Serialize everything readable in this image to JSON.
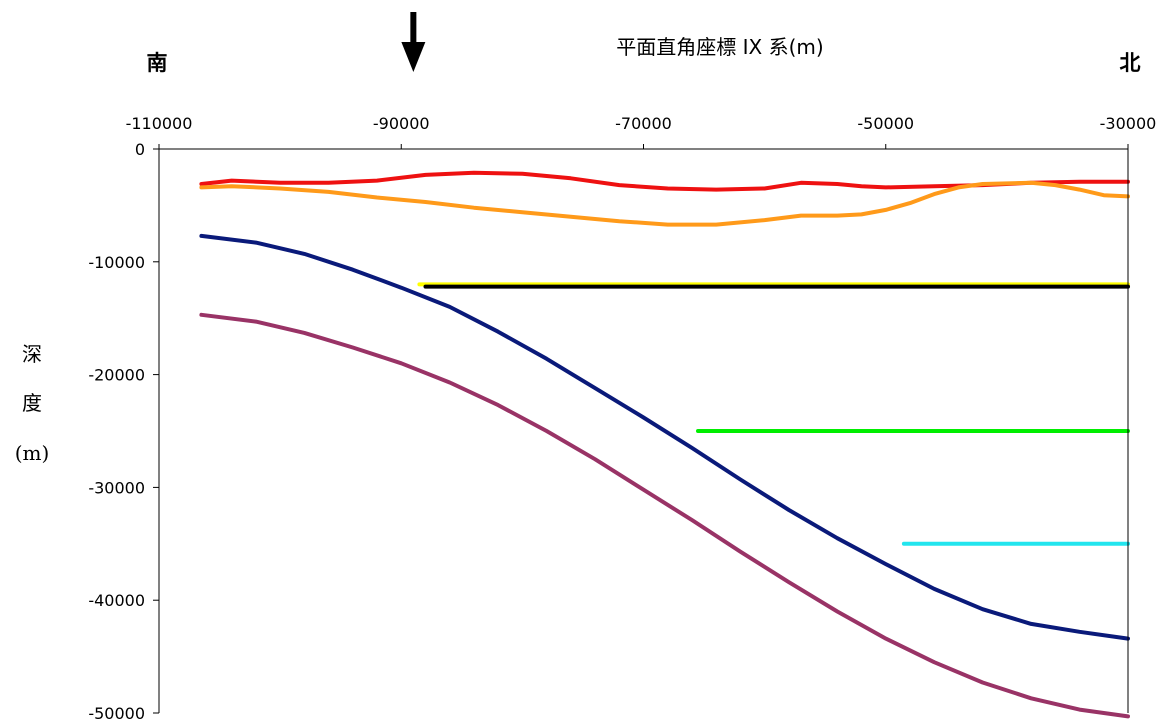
{
  "chart_data": {
    "type": "line",
    "title": "平面直角座標 IX 系(m)",
    "left_label": "南",
    "right_label": "北",
    "ylabel_lines": [
      "深",
      "度",
      "(m)"
    ],
    "marker_x": -89000,
    "xlim": [
      -110000,
      -30000
    ],
    "ylim": [
      -50000,
      0
    ],
    "xticks": [
      -110000,
      -90000,
      -70000,
      -50000,
      -30000
    ],
    "xtick_labels": [
      "-110000",
      "-90000",
      "-70000",
      "-50000",
      "-30000"
    ],
    "yticks": [
      0,
      -10000,
      -20000,
      -30000,
      -40000,
      -50000
    ],
    "ytick_labels": [
      "0",
      "-10000",
      "-20000",
      "-30000",
      "-40000",
      "-50000"
    ],
    "grid": false,
    "series": [
      {
        "color": "#ee1111",
        "x": [
          -106500,
          -104000,
          -100000,
          -96000,
          -92000,
          -88000,
          -84000,
          -80000,
          -76000,
          -72000,
          -68000,
          -64000,
          -60000,
          -57000,
          -54000,
          -52000,
          -50000,
          -46000,
          -42000,
          -38000,
          -34000,
          -30000
        ],
        "y": [
          -3100,
          -2800,
          -3000,
          -3000,
          -2800,
          -2300,
          -2100,
          -2200,
          -2600,
          -3200,
          -3500,
          -3600,
          -3500,
          -3000,
          -3100,
          -3300,
          -3400,
          -3300,
          -3200,
          -3000,
          -2900,
          -2900
        ]
      },
      {
        "color": "#ff9a1a",
        "x": [
          -106500,
          -104000,
          -100000,
          -96000,
          -92000,
          -88000,
          -84000,
          -80000,
          -76000,
          -72000,
          -68000,
          -64000,
          -60000,
          -57000,
          -54000,
          -52000,
          -50000,
          -48000,
          -46000,
          -44000,
          -42000,
          -38000,
          -36000,
          -34000,
          -32000,
          -30000
        ],
        "y": [
          -3400,
          -3300,
          -3500,
          -3800,
          -4300,
          -4700,
          -5200,
          -5600,
          -6000,
          -6400,
          -6700,
          -6700,
          -6300,
          -5900,
          -5900,
          -5800,
          -5400,
          -4800,
          -4000,
          -3400,
          -3100,
          -3000,
          -3200,
          -3600,
          -4100,
          -4200
        ]
      },
      {
        "color": "#ffff00",
        "x": [
          -88500,
          -30000
        ],
        "y": [
          -12000,
          -12000
        ]
      },
      {
        "color": "#000000",
        "x": [
          -88000,
          -30000
        ],
        "y": [
          -12200,
          -12200
        ]
      },
      {
        "color": "#00ee00",
        "x": [
          -65500,
          -30000
        ],
        "y": [
          -25000,
          -25000
        ]
      },
      {
        "color": "#22e5ee",
        "x": [
          -48500,
          -30000
        ],
        "y": [
          -35000,
          -35000
        ]
      },
      {
        "color": "#0a1a7a",
        "x": [
          -106500,
          -102000,
          -98000,
          -94000,
          -90000,
          -86000,
          -82000,
          -78000,
          -74000,
          -70000,
          -66000,
          -62000,
          -58000,
          -54000,
          -50000,
          -46000,
          -42000,
          -38000,
          -34000,
          -30000
        ],
        "y": [
          -7700,
          -8300,
          -9300,
          -10700,
          -12300,
          -14000,
          -16200,
          -18600,
          -21200,
          -23800,
          -26500,
          -29300,
          -32000,
          -34500,
          -36800,
          -39000,
          -40800,
          -42100,
          -42800,
          -43400
        ]
      },
      {
        "color": "#993366",
        "x": [
          -106500,
          -102000,
          -98000,
          -94000,
          -90000,
          -86000,
          -82000,
          -78000,
          -74000,
          -70000,
          -66000,
          -62000,
          -58000,
          -54000,
          -50000,
          -46000,
          -42000,
          -38000,
          -34000,
          -30000
        ],
        "y": [
          -14700,
          -15300,
          -16300,
          -17600,
          -19000,
          -20700,
          -22700,
          -25000,
          -27500,
          -30200,
          -32900,
          -35700,
          -38400,
          -41000,
          -43400,
          -45500,
          -47300,
          -48700,
          -49700,
          -50300
        ]
      }
    ]
  }
}
